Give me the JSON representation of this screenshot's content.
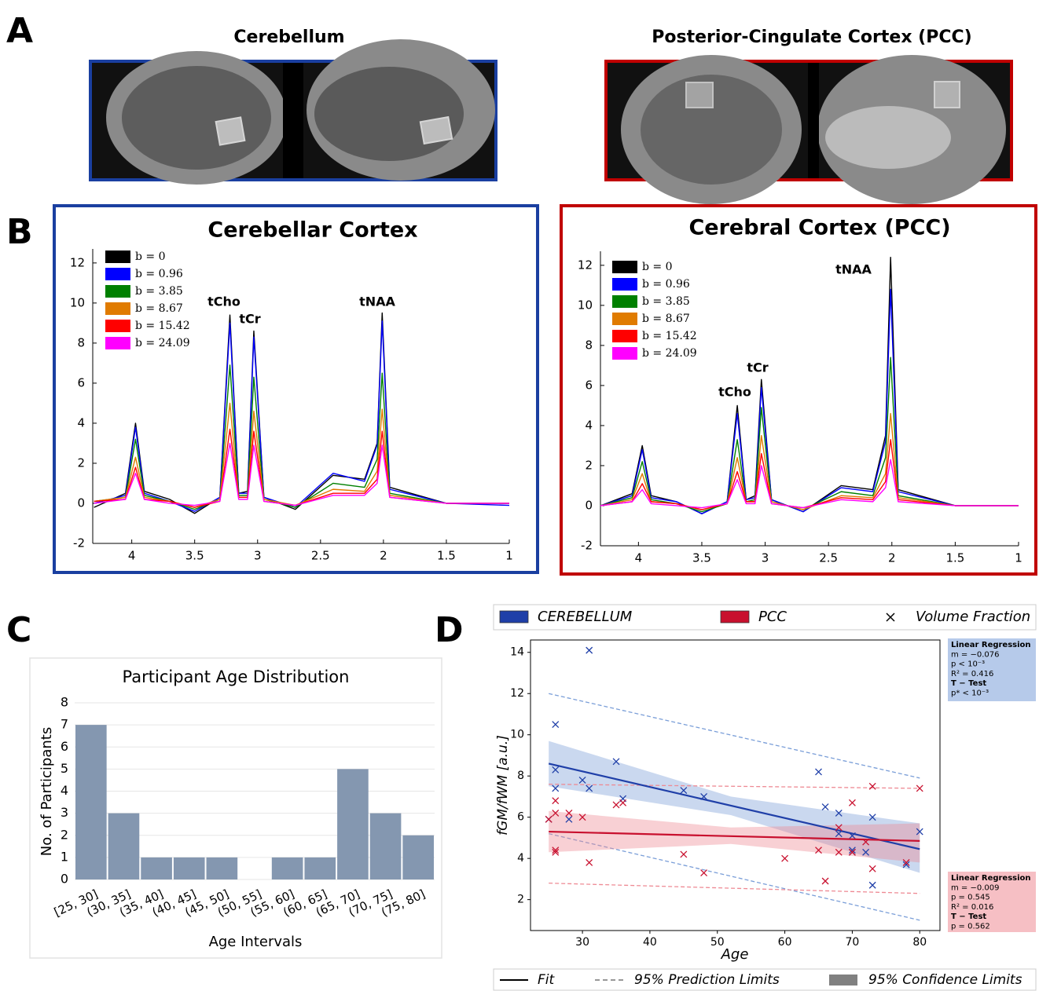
{
  "panel_labels": [
    "A",
    "B",
    "C",
    "D"
  ],
  "panel_a": {
    "titles": [
      "Cerebellum",
      "Posterior-Cingulate Cortex (PCC)"
    ]
  },
  "chart_data": [
    {
      "type": "line",
      "title": "Cerebellar Cortex",
      "x": [
        4.3,
        4.05,
        3.97,
        3.9,
        3.7,
        3.5,
        3.3,
        3.22,
        3.15,
        3.08,
        3.03,
        2.95,
        2.7,
        2.4,
        2.15,
        2.05,
        2.01,
        1.95,
        1.5,
        1.0
      ],
      "xlim": [
        4.31,
        1
      ],
      "xticks": [
        4,
        3.5,
        3,
        2.5,
        2,
        1.5,
        1
      ],
      "ylim": [
        -2,
        12.7
      ],
      "yticks": [
        -2,
        0,
        2,
        4,
        6,
        8,
        10,
        12
      ],
      "annotations": [
        "tCho",
        "tCr",
        "tNAA"
      ],
      "series": [
        {
          "name": "b = 0",
          "color": "#000000",
          "values": [
            -0.2,
            0.5,
            4.0,
            0.6,
            0.2,
            -0.5,
            0.3,
            9.4,
            0.5,
            0.6,
            8.6,
            0.3,
            -0.3,
            1.4,
            1.2,
            3.0,
            9.5,
            0.8,
            0.0,
            0.0
          ]
        },
        {
          "name": "b = 0.96",
          "color": "#0000ff",
          "values": [
            0.0,
            0.4,
            3.8,
            0.5,
            0.1,
            -0.4,
            0.3,
            9.0,
            0.5,
            0.5,
            8.3,
            0.3,
            -0.2,
            1.5,
            1.1,
            2.9,
            9.1,
            0.7,
            0.0,
            -0.1
          ]
        },
        {
          "name": "b = 3.85",
          "color": "#008000",
          "values": [
            0.1,
            0.3,
            3.2,
            0.4,
            0.1,
            -0.3,
            0.2,
            6.9,
            0.4,
            0.4,
            6.3,
            0.2,
            -0.2,
            1.0,
            0.8,
            2.2,
            6.5,
            0.5,
            0.0,
            0.0
          ]
        },
        {
          "name": "b = 8.67",
          "color": "#e07b00",
          "values": [
            0.1,
            0.3,
            2.3,
            0.3,
            0.1,
            -0.2,
            0.2,
            5.0,
            0.3,
            0.3,
            4.6,
            0.2,
            -0.1,
            0.7,
            0.6,
            1.6,
            4.7,
            0.4,
            0.0,
            0.0
          ]
        },
        {
          "name": "b = 15.42",
          "color": "#ff0000",
          "values": [
            0.1,
            0.2,
            1.8,
            0.2,
            0.1,
            -0.2,
            0.1,
            3.7,
            0.3,
            0.3,
            3.6,
            0.1,
            -0.1,
            0.5,
            0.5,
            1.2,
            3.6,
            0.3,
            0.0,
            0.0
          ]
        },
        {
          "name": "b = 24.09",
          "color": "#ff00ff",
          "values": [
            0.0,
            0.2,
            1.5,
            0.2,
            0.0,
            -0.1,
            0.1,
            3.0,
            0.2,
            0.2,
            2.9,
            0.1,
            -0.1,
            0.4,
            0.4,
            1.0,
            2.9,
            0.3,
            0.0,
            0.0
          ]
        }
      ]
    },
    {
      "type": "line",
      "title": "Cerebral Cortex (PCC)",
      "x": [
        4.3,
        4.05,
        3.97,
        3.9,
        3.7,
        3.5,
        3.3,
        3.22,
        3.15,
        3.08,
        3.03,
        2.95,
        2.7,
        2.4,
        2.15,
        2.05,
        2.01,
        1.95,
        1.5,
        1.0
      ],
      "xlim": [
        4.3,
        1
      ],
      "xticks": [
        4,
        3.5,
        3,
        2.5,
        2,
        1.5,
        1
      ],
      "ylim": [
        -2,
        12.7
      ],
      "yticks": [
        -2,
        0,
        2,
        4,
        6,
        8,
        10,
        12
      ],
      "annotations": [
        "tCho",
        "tCr",
        "tNAA"
      ],
      "series": [
        {
          "name": "b = 0",
          "color": "#000000",
          "values": [
            0.0,
            0.6,
            3.0,
            0.5,
            0.2,
            -0.4,
            0.2,
            5.0,
            0.3,
            0.5,
            6.3,
            0.3,
            -0.3,
            1.0,
            0.8,
            3.5,
            12.4,
            0.8,
            0.0,
            0.0
          ]
        },
        {
          "name": "b = 0.96",
          "color": "#0000ff",
          "values": [
            0.0,
            0.5,
            2.8,
            0.4,
            0.2,
            -0.4,
            0.2,
            4.6,
            0.3,
            0.4,
            5.9,
            0.3,
            -0.3,
            0.9,
            0.7,
            3.2,
            10.8,
            0.7,
            0.0,
            0.0
          ]
        },
        {
          "name": "b = 3.85",
          "color": "#008000",
          "values": [
            0.0,
            0.4,
            2.2,
            0.3,
            0.1,
            -0.3,
            0.1,
            3.3,
            0.2,
            0.3,
            4.9,
            0.2,
            -0.2,
            0.7,
            0.5,
            2.4,
            7.4,
            0.5,
            0.0,
            0.0
          ]
        },
        {
          "name": "b = 8.67",
          "color": "#e07b00",
          "values": [
            0.0,
            0.3,
            1.6,
            0.2,
            0.1,
            -0.2,
            0.1,
            2.4,
            0.2,
            0.2,
            3.5,
            0.2,
            -0.2,
            0.5,
            0.4,
            1.6,
            4.6,
            0.4,
            0.0,
            0.0
          ]
        },
        {
          "name": "b = 15.42",
          "color": "#ff0000",
          "values": [
            0.0,
            0.2,
            1.1,
            0.2,
            0.1,
            -0.2,
            0.1,
            1.7,
            0.2,
            0.2,
            2.6,
            0.1,
            -0.1,
            0.4,
            0.3,
            1.2,
            3.3,
            0.3,
            0.0,
            0.0
          ]
        },
        {
          "name": "b = 24.09",
          "color": "#ff00ff",
          "values": [
            0.0,
            0.2,
            0.8,
            0.1,
            0.0,
            -0.1,
            0.1,
            1.3,
            0.1,
            0.1,
            2.0,
            0.1,
            -0.1,
            0.3,
            0.2,
            0.9,
            2.3,
            0.2,
            0.0,
            0.0
          ]
        }
      ]
    },
    {
      "type": "bar",
      "title": "Participant Age Distribution",
      "x_label": "Age Intervals",
      "y_label": "No. of Participants",
      "categories": [
        "[25, 30]",
        "(30, 35]",
        "(35, 40]",
        "(40, 45]",
        "(45, 50]",
        "(50, 55]",
        "(55, 60]",
        "(60, 65]",
        "(65, 70]",
        "(70, 75]",
        "(75, 80]"
      ],
      "values": [
        7,
        3,
        1,
        1,
        1,
        0,
        1,
        1,
        5,
        3,
        2
      ],
      "color": "#8497b0",
      "ylim": [
        0,
        8
      ],
      "yticks": [
        0,
        1,
        2,
        3,
        4,
        5,
        6,
        7,
        8
      ],
      "grid": true
    },
    {
      "type": "scatter",
      "x_label": "Age",
      "y_label": "fGM/fWM [a.u.]",
      "xlim": [
        22.3,
        83
      ],
      "xticks": [
        30,
        40,
        50,
        60,
        70,
        80
      ],
      "ylim": [
        0.5,
        14.6
      ],
      "yticks": [
        2,
        4,
        6,
        8,
        10,
        12,
        14
      ],
      "marker_label": "Volume Fraction",
      "legend_labels": [
        "Fit",
        "95% Prediction Limits",
        "95% Confidence Limits"
      ],
      "series": [
        {
          "name": "CEREBELLUM",
          "color": "#1f3fa8",
          "band_color": "#7a9ed8",
          "x": [
            25,
            26,
            26,
            26,
            28,
            30,
            31,
            31,
            35,
            36,
            45,
            48,
            65,
            66,
            68,
            68,
            70,
            70,
            70,
            72,
            73,
            73,
            78,
            80
          ],
          "values": [
            5.9,
            10.5,
            8.3,
            7.4,
            5.9,
            7.8,
            7.4,
            14.1,
            8.7,
            6.9,
            7.3,
            7.0,
            8.2,
            6.5,
            6.2,
            5.2,
            4.3,
            4.4,
            5.1,
            4.3,
            6.0,
            2.7,
            3.7,
            5.3
          ],
          "fit": {
            "x": [
              25,
              80
            ],
            "values": [
              8.6,
              4.45
            ]
          },
          "confidence": {
            "x": [
              25,
              52,
              80
            ],
            "upper": [
              9.7,
              7.0,
              5.7
            ],
            "lower": [
              7.5,
              6.1,
              3.3
            ]
          },
          "prediction": {
            "x": [
              25,
              80
            ],
            "upper": [
              12.0,
              7.9
            ],
            "lower": [
              5.2,
              1.0
            ]
          },
          "stats": [
            "Linear Regression",
            "m = −0.076",
            "p < 10⁻³",
            "R² = 0.416",
            "T − Test",
            "p* < 10⁻³"
          ]
        },
        {
          "name": "PCC",
          "color": "#c8102e",
          "band_color": "#ee8a94",
          "x": [
            25,
            26,
            26,
            26,
            26,
            28,
            30,
            31,
            35,
            36,
            45,
            48,
            60,
            65,
            66,
            68,
            68,
            70,
            70,
            72,
            73,
            73,
            78,
            80
          ],
          "values": [
            5.9,
            6.8,
            6.2,
            4.4,
            4.3,
            6.2,
            6.0,
            3.8,
            6.6,
            6.7,
            4.2,
            3.3,
            4.0,
            4.4,
            2.9,
            5.5,
            4.3,
            6.7,
            4.3,
            4.8,
            7.5,
            3.5,
            3.8,
            7.4
          ],
          "fit": {
            "x": [
              25,
              80
            ],
            "values": [
              5.3,
              4.85
            ]
          },
          "confidence": {
            "x": [
              25,
              52,
              80
            ],
            "upper": [
              6.3,
              5.5,
              5.7
            ],
            "lower": [
              4.3,
              4.7,
              3.8
            ]
          },
          "prediction": {
            "x": [
              25,
              80
            ],
            "upper": [
              7.6,
              7.4
            ],
            "lower": [
              2.8,
              2.3
            ]
          },
          "stats": [
            "Linear Regression",
            "m = −0.009",
            "p = 0.545",
            "R² = 0.016",
            "T − Test",
            "p = 0.562"
          ]
        }
      ]
    }
  ]
}
